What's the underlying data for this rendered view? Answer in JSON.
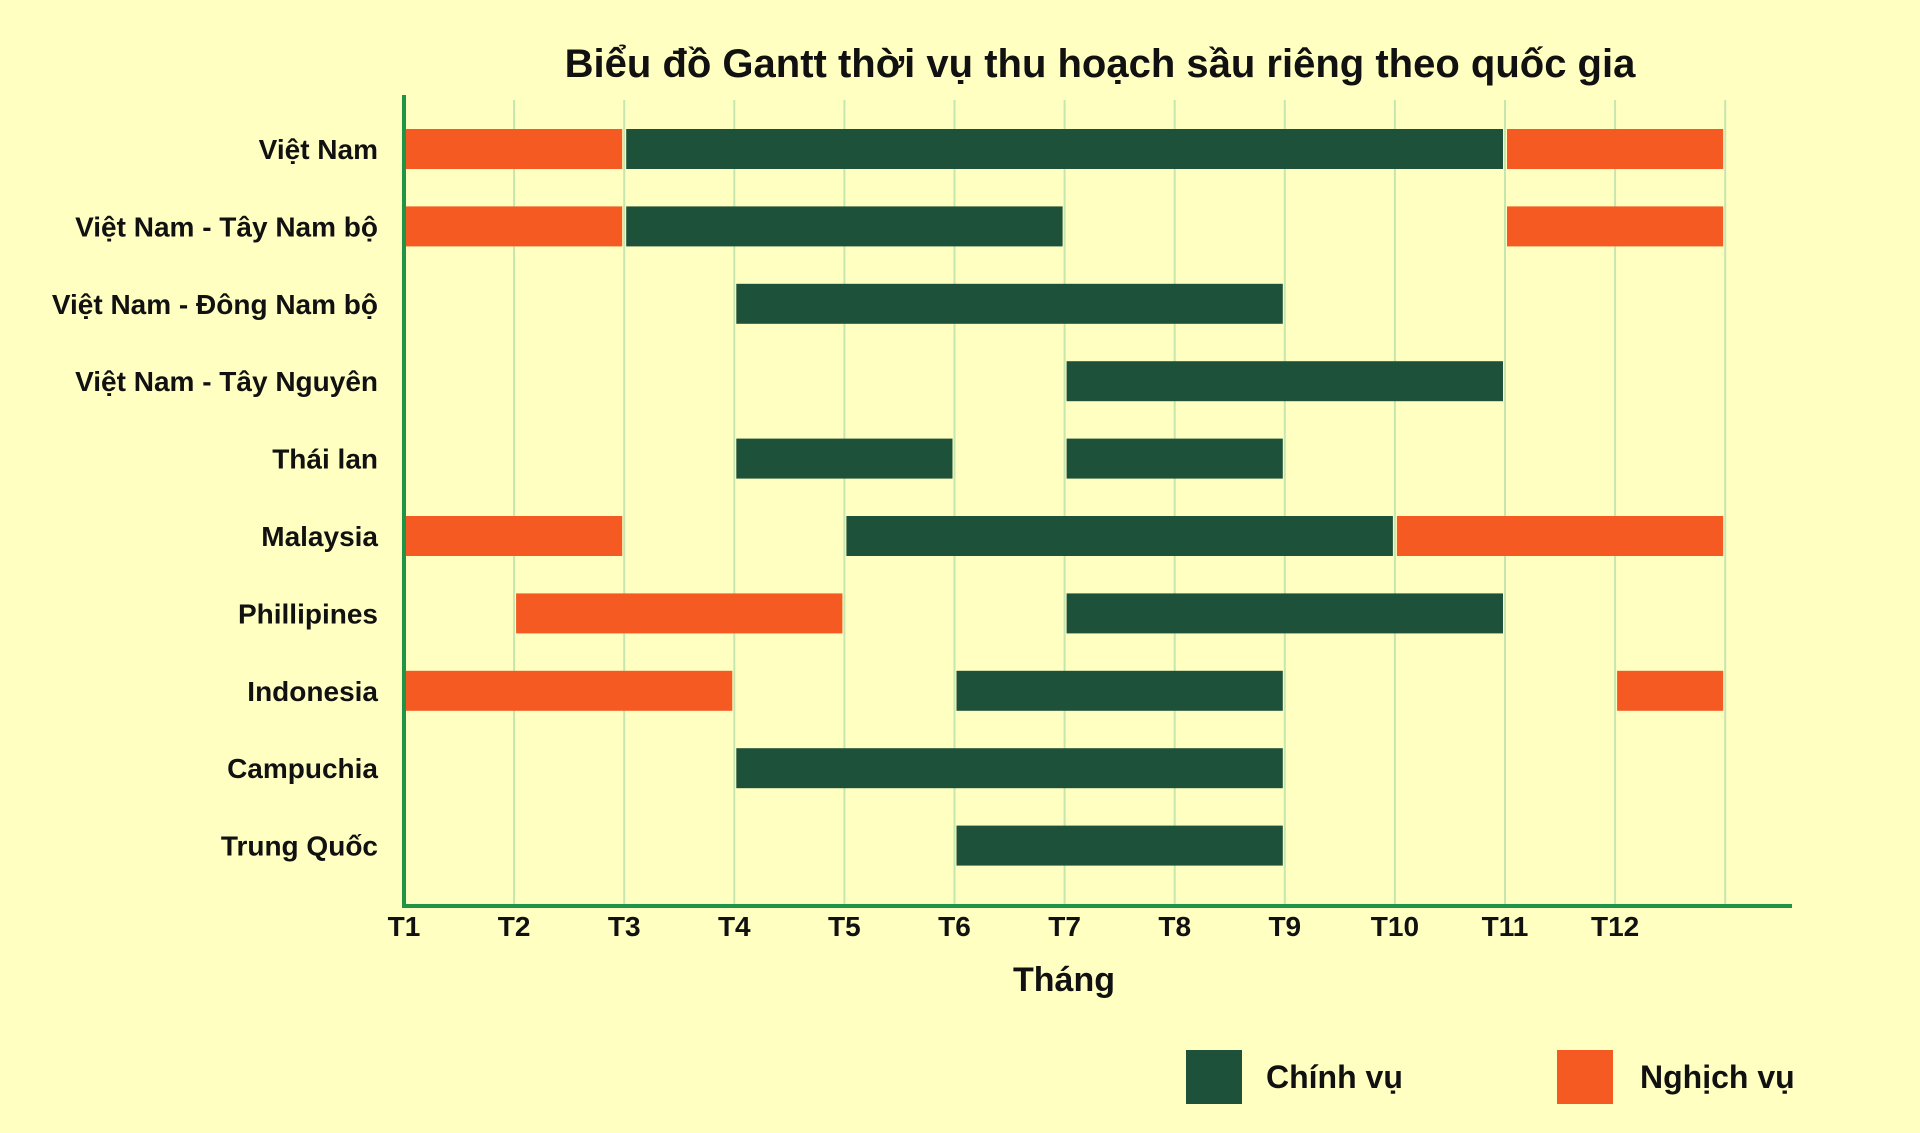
{
  "chart_data": {
    "type": "gantt",
    "title": "Biểu đồ Gantt thời vụ thu hoạch sầu riêng theo quốc gia",
    "xlabel": "Tháng",
    "x_ticks": [
      "T1",
      "T2",
      "T3",
      "T4",
      "T5",
      "T6",
      "T7",
      "T8",
      "T9",
      "T10",
      "T11",
      "T12"
    ],
    "xlim": [
      1,
      13
    ],
    "grid": "vertical",
    "legend_position": "bottom-right",
    "series": [
      {
        "key": "main",
        "name": "Chính vụ",
        "color": "#1e513a"
      },
      {
        "key": "off",
        "name": "Nghịch vụ",
        "color": "#f55a22"
      }
    ],
    "rows": [
      {
        "label": "Việt Nam",
        "segments": [
          {
            "series": "off",
            "start": 1,
            "end": 3
          },
          {
            "series": "main",
            "start": 3,
            "end": 11
          },
          {
            "series": "off",
            "start": 11,
            "end": 13
          }
        ]
      },
      {
        "label": "Việt Nam - Tây Nam bộ",
        "segments": [
          {
            "series": "off",
            "start": 1,
            "end": 3
          },
          {
            "series": "main",
            "start": 3,
            "end": 7
          },
          {
            "series": "off",
            "start": 11,
            "end": 13
          }
        ]
      },
      {
        "label": "Việt Nam - Đông Nam bộ",
        "segments": [
          {
            "series": "main",
            "start": 4,
            "end": 9
          }
        ]
      },
      {
        "label": "Việt Nam - Tây Nguyên",
        "segments": [
          {
            "series": "main",
            "start": 7,
            "end": 11
          }
        ]
      },
      {
        "label": "Thái lan",
        "segments": [
          {
            "series": "main",
            "start": 4,
            "end": 6
          },
          {
            "series": "main",
            "start": 7,
            "end": 9
          }
        ]
      },
      {
        "label": "Malaysia",
        "segments": [
          {
            "series": "off",
            "start": 1,
            "end": 3
          },
          {
            "series": "main",
            "start": 5,
            "end": 10
          },
          {
            "series": "off",
            "start": 10,
            "end": 13
          }
        ]
      },
      {
        "label": "Phillipines",
        "segments": [
          {
            "series": "off",
            "start": 2,
            "end": 5
          },
          {
            "series": "main",
            "start": 7,
            "end": 11
          }
        ]
      },
      {
        "label": "Indonesia",
        "segments": [
          {
            "series": "off",
            "start": 1,
            "end": 4
          },
          {
            "series": "main",
            "start": 6,
            "end": 9
          },
          {
            "series": "off",
            "start": 12,
            "end": 13
          }
        ]
      },
      {
        "label": "Campuchia",
        "segments": [
          {
            "series": "main",
            "start": 4,
            "end": 9
          }
        ]
      },
      {
        "label": "Trung Quốc",
        "segments": [
          {
            "series": "main",
            "start": 6,
            "end": 9
          }
        ]
      }
    ],
    "colors": {
      "background": "#ffffc2",
      "axis": "#1f9444",
      "grid": "#c6e6b0"
    }
  }
}
